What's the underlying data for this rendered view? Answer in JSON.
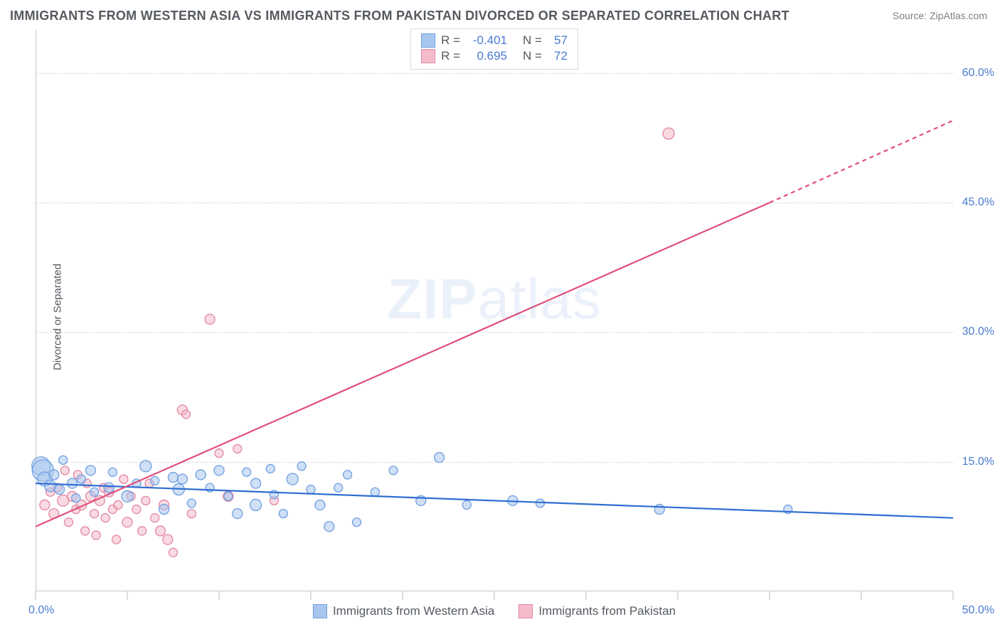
{
  "title": "IMMIGRANTS FROM WESTERN ASIA VS IMMIGRANTS FROM PAKISTAN DIVORCED OR SEPARATED CORRELATION CHART",
  "source_label": "Source: ",
  "source_name": "ZipAtlas.com",
  "y_axis_label": "Divorced or Separated",
  "watermark_bold": "ZIP",
  "watermark_rest": "atlas",
  "chart": {
    "type": "scatter-correlation",
    "xlim": [
      0,
      50
    ],
    "ylim": [
      0,
      65
    ],
    "x_tick_positions": [
      0,
      5,
      10,
      15,
      20,
      25,
      30,
      35,
      40,
      45,
      50
    ],
    "x_tick_labels": {
      "0": "0.0%",
      "50": "50.0%"
    },
    "y_tick_positions": [
      15,
      30,
      45,
      60
    ],
    "y_tick_labels": {
      "15": "15.0%",
      "30": "30.0%",
      "45": "45.0%",
      "60": "60.0%"
    },
    "background_color": "#ffffff",
    "grid_color": "#d6d9dd",
    "axis_color": "#c2c6cc",
    "tick_label_color": "#4a7bd0",
    "title_color": "#555a60",
    "title_fontsize": 18
  },
  "series": {
    "blue": {
      "label": "Immigrants from Western Asia",
      "fill": "#a9c6ef",
      "fill_opacity": 0.55,
      "stroke": "#6f9fe0",
      "line_color": "#2f6ed1",
      "trend_start": {
        "x": 0,
        "y": 12.5
      },
      "trend_end": {
        "x": 50,
        "y": 8.5
      },
      "r_label": "R = ",
      "r_value": "-0.401",
      "n_label": "N = ",
      "n_value": "57",
      "points": [
        {
          "x": 0.3,
          "y": 14.5,
          "r": 13
        },
        {
          "x": 0.4,
          "y": 14.0,
          "r": 15
        },
        {
          "x": 0.5,
          "y": 13.0,
          "r": 10
        },
        {
          "x": 0.8,
          "y": 12.2,
          "r": 8
        },
        {
          "x": 1.0,
          "y": 13.5,
          "r": 7
        },
        {
          "x": 1.3,
          "y": 11.8,
          "r": 7
        },
        {
          "x": 1.5,
          "y": 15.2,
          "r": 6
        },
        {
          "x": 2.0,
          "y": 12.5,
          "r": 7
        },
        {
          "x": 2.2,
          "y": 10.8,
          "r": 6
        },
        {
          "x": 2.5,
          "y": 13.0,
          "r": 6
        },
        {
          "x": 3.0,
          "y": 14.0,
          "r": 7
        },
        {
          "x": 3.2,
          "y": 11.5,
          "r": 6
        },
        {
          "x": 4.0,
          "y": 12.0,
          "r": 7
        },
        {
          "x": 4.2,
          "y": 13.8,
          "r": 6
        },
        {
          "x": 5.0,
          "y": 11.0,
          "r": 8
        },
        {
          "x": 5.5,
          "y": 12.5,
          "r": 6
        },
        {
          "x": 6.0,
          "y": 14.5,
          "r": 8
        },
        {
          "x": 6.5,
          "y": 12.8,
          "r": 6
        },
        {
          "x": 7.0,
          "y": 9.5,
          "r": 7
        },
        {
          "x": 7.5,
          "y": 13.2,
          "r": 7
        },
        {
          "x": 7.8,
          "y": 11.8,
          "r": 8
        },
        {
          "x": 8.0,
          "y": 13.0,
          "r": 7
        },
        {
          "x": 8.5,
          "y": 10.2,
          "r": 6
        },
        {
          "x": 9.0,
          "y": 13.5,
          "r": 7
        },
        {
          "x": 9.5,
          "y": 12.0,
          "r": 6
        },
        {
          "x": 10.0,
          "y": 14.0,
          "r": 7
        },
        {
          "x": 10.5,
          "y": 11.0,
          "r": 6
        },
        {
          "x": 11.0,
          "y": 9.0,
          "r": 7
        },
        {
          "x": 11.5,
          "y": 13.8,
          "r": 6
        },
        {
          "x": 12.0,
          "y": 12.5,
          "r": 7
        },
        {
          "x": 12.0,
          "y": 10.0,
          "r": 8
        },
        {
          "x": 12.8,
          "y": 14.2,
          "r": 6
        },
        {
          "x": 13.0,
          "y": 11.2,
          "r": 6
        },
        {
          "x": 13.5,
          "y": 9.0,
          "r": 6
        },
        {
          "x": 14.0,
          "y": 13.0,
          "r": 8
        },
        {
          "x": 14.5,
          "y": 14.5,
          "r": 6
        },
        {
          "x": 15.0,
          "y": 11.8,
          "r": 6
        },
        {
          "x": 15.5,
          "y": 10.0,
          "r": 7
        },
        {
          "x": 16.0,
          "y": 7.5,
          "r": 7
        },
        {
          "x": 16.5,
          "y": 12.0,
          "r": 6
        },
        {
          "x": 17.0,
          "y": 13.5,
          "r": 6
        },
        {
          "x": 17.5,
          "y": 8.0,
          "r": 6
        },
        {
          "x": 18.5,
          "y": 11.5,
          "r": 6
        },
        {
          "x": 19.5,
          "y": 14.0,
          "r": 6
        },
        {
          "x": 21.0,
          "y": 10.5,
          "r": 7
        },
        {
          "x": 22.0,
          "y": 15.5,
          "r": 7
        },
        {
          "x": 23.5,
          "y": 10.0,
          "r": 6
        },
        {
          "x": 26.0,
          "y": 10.5,
          "r": 7
        },
        {
          "x": 27.5,
          "y": 10.2,
          "r": 6
        },
        {
          "x": 34.0,
          "y": 9.5,
          "r": 7
        },
        {
          "x": 41.0,
          "y": 9.5,
          "r": 6
        }
      ]
    },
    "pink": {
      "label": "Immigrants from Pakistan",
      "fill": "#f4bccb",
      "fill_opacity": 0.55,
      "stroke": "#e286a1",
      "line_color": "#e14f7a",
      "trend_start": {
        "x": 0,
        "y": 7.5
      },
      "trend_end_solid": {
        "x": 40,
        "y": 45
      },
      "trend_end_dash": {
        "x": 50,
        "y": 54.5
      },
      "r_label": "R = ",
      "r_value": "0.695",
      "n_label": "N = ",
      "n_value": "72",
      "points": [
        {
          "x": 0.5,
          "y": 10.0,
          "r": 7
        },
        {
          "x": 0.8,
          "y": 11.5,
          "r": 6
        },
        {
          "x": 1.0,
          "y": 9.0,
          "r": 7
        },
        {
          "x": 1.2,
          "y": 12.0,
          "r": 6
        },
        {
          "x": 1.5,
          "y": 10.5,
          "r": 8
        },
        {
          "x": 1.6,
          "y": 14.0,
          "r": 6
        },
        {
          "x": 1.8,
          "y": 8.0,
          "r": 6
        },
        {
          "x": 2.0,
          "y": 11.0,
          "r": 7
        },
        {
          "x": 2.2,
          "y": 9.5,
          "r": 6
        },
        {
          "x": 2.3,
          "y": 13.5,
          "r": 6
        },
        {
          "x": 2.5,
          "y": 10.0,
          "r": 7
        },
        {
          "x": 2.7,
          "y": 7.0,
          "r": 6
        },
        {
          "x": 2.8,
          "y": 12.5,
          "r": 6
        },
        {
          "x": 3.0,
          "y": 11.0,
          "r": 7
        },
        {
          "x": 3.2,
          "y": 9.0,
          "r": 6
        },
        {
          "x": 3.3,
          "y": 6.5,
          "r": 6
        },
        {
          "x": 3.5,
          "y": 10.5,
          "r": 7
        },
        {
          "x": 3.7,
          "y": 12.0,
          "r": 6
        },
        {
          "x": 3.8,
          "y": 8.5,
          "r": 6
        },
        {
          "x": 4.0,
          "y": 11.5,
          "r": 7
        },
        {
          "x": 4.2,
          "y": 9.5,
          "r": 6
        },
        {
          "x": 4.4,
          "y": 6.0,
          "r": 6
        },
        {
          "x": 4.5,
          "y": 10.0,
          "r": 6
        },
        {
          "x": 4.8,
          "y": 13.0,
          "r": 6
        },
        {
          "x": 5.0,
          "y": 8.0,
          "r": 7
        },
        {
          "x": 5.2,
          "y": 11.0,
          "r": 6
        },
        {
          "x": 5.5,
          "y": 9.5,
          "r": 6
        },
        {
          "x": 5.8,
          "y": 7.0,
          "r": 6
        },
        {
          "x": 6.0,
          "y": 10.5,
          "r": 6
        },
        {
          "x": 6.2,
          "y": 12.5,
          "r": 6
        },
        {
          "x": 6.5,
          "y": 8.5,
          "r": 6
        },
        {
          "x": 6.8,
          "y": 7.0,
          "r": 7
        },
        {
          "x": 7.0,
          "y": 10.0,
          "r": 7
        },
        {
          "x": 7.2,
          "y": 6.0,
          "r": 7
        },
        {
          "x": 7.5,
          "y": 4.5,
          "r": 6
        },
        {
          "x": 8.0,
          "y": 21.0,
          "r": 7
        },
        {
          "x": 8.2,
          "y": 20.5,
          "r": 6
        },
        {
          "x": 8.5,
          "y": 9.0,
          "r": 6
        },
        {
          "x": 9.5,
          "y": 31.5,
          "r": 7
        },
        {
          "x": 10.0,
          "y": 16.0,
          "r": 6
        },
        {
          "x": 10.5,
          "y": 11.0,
          "r": 7
        },
        {
          "x": 11.0,
          "y": 16.5,
          "r": 6
        },
        {
          "x": 13.0,
          "y": 10.5,
          "r": 6
        },
        {
          "x": 34.5,
          "y": 53.0,
          "r": 8
        }
      ]
    }
  }
}
